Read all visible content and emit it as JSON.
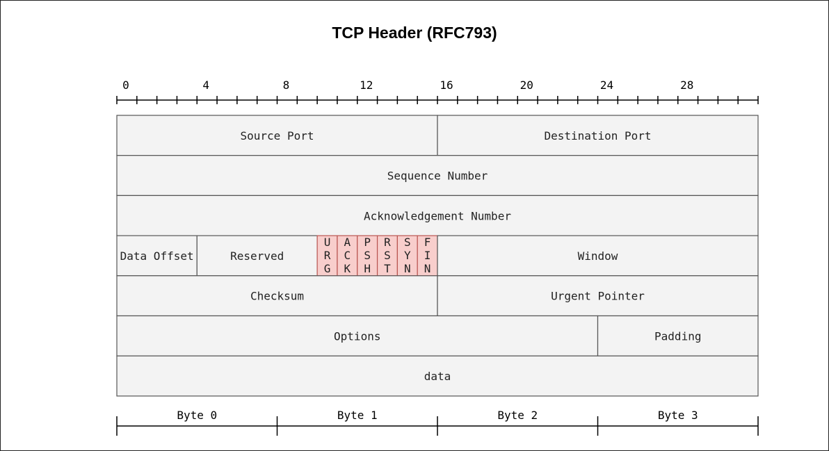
{
  "title": "TCP Header (RFC793)",
  "ruler": {
    "total_bits": 32,
    "labels": [
      "0",
      "4",
      "8",
      "12",
      "16",
      "20",
      "24",
      "28"
    ]
  },
  "fields": [
    {
      "name": "source-port",
      "label": "Source Port",
      "row": 0,
      "start_bit": 0,
      "bits": 16
    },
    {
      "name": "destination-port",
      "label": "Destination Port",
      "row": 0,
      "start_bit": 16,
      "bits": 16
    },
    {
      "name": "sequence-number",
      "label": "Sequence Number",
      "row": 1,
      "start_bit": 0,
      "bits": 32
    },
    {
      "name": "acknowledgement-number",
      "label": "Acknowledgement Number",
      "row": 2,
      "start_bit": 0,
      "bits": 32
    },
    {
      "name": "data-offset",
      "label": "Data Offset",
      "row": 3,
      "start_bit": 0,
      "bits": 4
    },
    {
      "name": "reserved",
      "label": "Reserved",
      "row": 3,
      "start_bit": 4,
      "bits": 6
    },
    {
      "name": "flag-urg",
      "label": "URG",
      "row": 3,
      "start_bit": 10,
      "bits": 1,
      "flag": true
    },
    {
      "name": "flag-ack",
      "label": "ACK",
      "row": 3,
      "start_bit": 11,
      "bits": 1,
      "flag": true
    },
    {
      "name": "flag-psh",
      "label": "PSH",
      "row": 3,
      "start_bit": 12,
      "bits": 1,
      "flag": true
    },
    {
      "name": "flag-rst",
      "label": "RST",
      "row": 3,
      "start_bit": 13,
      "bits": 1,
      "flag": true
    },
    {
      "name": "flag-syn",
      "label": "SYN",
      "row": 3,
      "start_bit": 14,
      "bits": 1,
      "flag": true
    },
    {
      "name": "flag-fin",
      "label": "FIN",
      "row": 3,
      "start_bit": 15,
      "bits": 1,
      "flag": true
    },
    {
      "name": "window",
      "label": "Window",
      "row": 3,
      "start_bit": 16,
      "bits": 16
    },
    {
      "name": "checksum",
      "label": "Checksum",
      "row": 4,
      "start_bit": 0,
      "bits": 16
    },
    {
      "name": "urgent-pointer",
      "label": "Urgent Pointer",
      "row": 4,
      "start_bit": 16,
      "bits": 16
    },
    {
      "name": "options",
      "label": "Options",
      "row": 5,
      "start_bit": 0,
      "bits": 24
    },
    {
      "name": "padding",
      "label": "Padding",
      "row": 5,
      "start_bit": 24,
      "bits": 8
    },
    {
      "name": "data",
      "label": "data",
      "row": 6,
      "start_bit": 0,
      "bits": 32
    }
  ],
  "bytes": [
    "Byte 0",
    "Byte 1",
    "Byte 2",
    "Byte 3"
  ],
  "colors": {
    "field_fill": "#f3f3f3",
    "field_stroke": "#555555",
    "flag_fill": "#f8cecc",
    "flag_stroke": "#b85450",
    "text": "#222222",
    "axis": "#000000"
  }
}
